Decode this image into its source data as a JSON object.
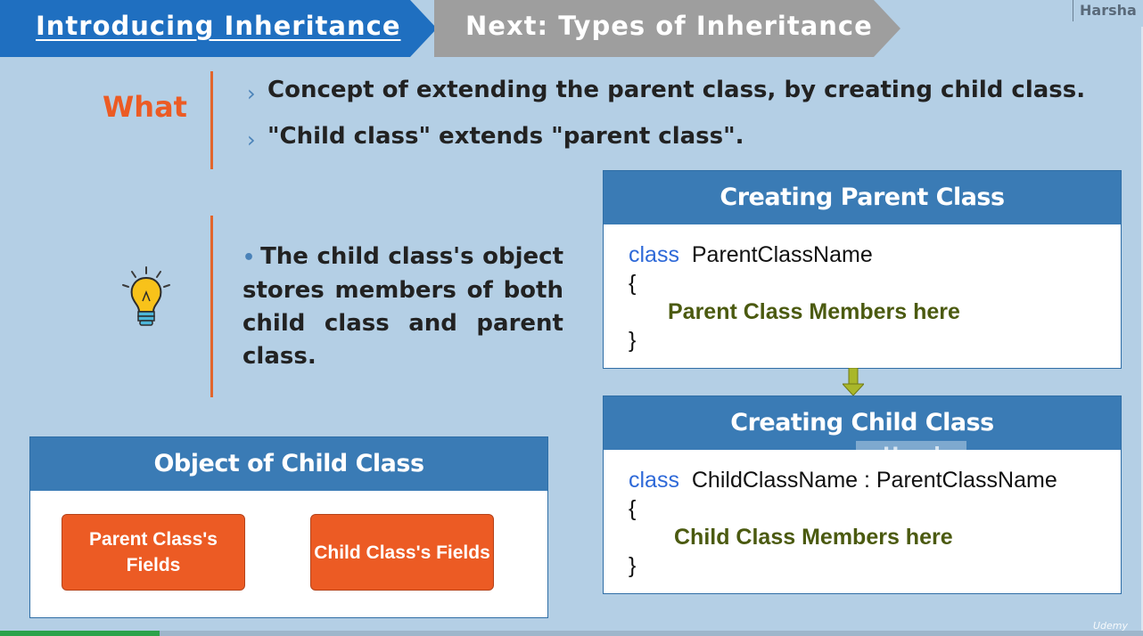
{
  "header": {
    "current_section": "Introducing Inheritance",
    "next_section": "Next: Types of Inheritance",
    "brand": "Harsha"
  },
  "what": {
    "label": "What",
    "points": [
      "Concept of extending the parent class, by creating child class.",
      "\"Child class\" extends \"parent class\"."
    ]
  },
  "idea": {
    "icon": "lightbulb-icon",
    "text": "The child class's object stores members of both child class and parent class."
  },
  "parent_box": {
    "title": "Creating Parent Class",
    "keyword": "class",
    "class_name": "ParentClassName",
    "open_brace": "{",
    "members": "Parent Class Members here",
    "close_brace": "}"
  },
  "child_box": {
    "title": "Creating Child Class",
    "keyword": "class",
    "class_name": "ChildClassName : ParentClassName",
    "open_brace": "{",
    "members": "Child Class Members here",
    "close_brace": "}"
  },
  "object_box": {
    "title": "Object of Child Class",
    "parent_fields": "Parent Class's Fields",
    "child_fields": "Child Class's Fields"
  },
  "watermark": "Harsha",
  "player": {
    "progress_fraction": 0.14,
    "logo": "Udemy"
  },
  "colors": {
    "header_active": "#1f6fc0",
    "header_next": "#9e9e9e",
    "accent_orange": "#ec5b24",
    "box_header": "#3a7bb5",
    "background": "#b4cfe5"
  }
}
